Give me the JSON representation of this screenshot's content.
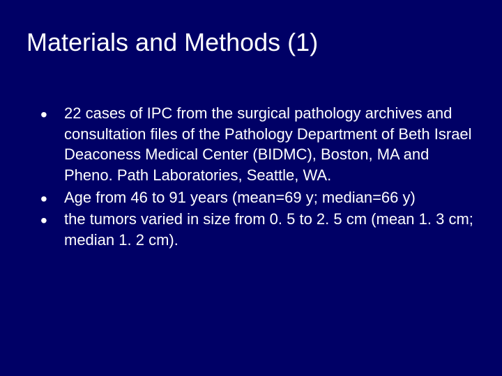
{
  "slide": {
    "background_color": "#000066",
    "text_color": "#ffffff",
    "title": "Materials and Methods (1)",
    "title_fontsize": 36,
    "body_fontsize": 22,
    "font_family": "Verdana",
    "bullets": [
      "22 cases of IPC from the surgical pathology archives and consultation files of the Pathology Department of Beth Israel Deaconess Medical Center (BIDMC), Boston, MA and Pheno. Path Laboratories, Seattle, WA.",
      "Age from 46 to 91 years (mean=69 y; median=66 y)",
      "the tumors varied in size from 0. 5 to 2. 5 cm (mean 1. 3 cm; median 1. 2 cm)."
    ]
  }
}
